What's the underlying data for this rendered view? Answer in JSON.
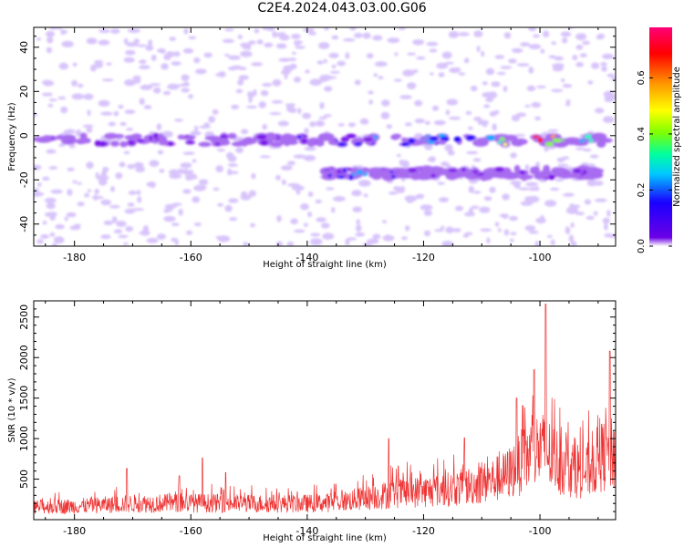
{
  "figure_title": "C2E4.2024.043.03.00.G06",
  "colors": {
    "snr_line": "#ee3333",
    "colormap": [
      "#ffffff",
      "#d8c4fb",
      "#a86cf0",
      "#7a10ea",
      "#1a00ff",
      "#00a8ff",
      "#00ffbf",
      "#7fff00",
      "#ffff00",
      "#ff9900",
      "#ff0000",
      "#ff0077"
    ]
  },
  "chart_data": [
    {
      "type": "heatmap",
      "xlabel": "Height of straight line (km)",
      "ylabel": "Frequency (Hz)",
      "xlim": [
        -187,
        -87
      ],
      "ylim": [
        -50,
        49
      ],
      "xticks": [
        -180,
        -160,
        -140,
        -120,
        -100
      ],
      "yticks": [
        -40,
        -20,
        0,
        20,
        40
      ],
      "colorbar": {
        "label": "Normalized spectral amplitude",
        "range": [
          0.0,
          0.78
        ],
        "ticks": [
          0.0,
          0.2,
          0.4,
          0.6
        ]
      },
      "ridges": [
        {
          "freq": -2,
          "x_range": [
            -187,
            -88
          ],
          "peak": 0.78,
          "peak_at": -101
        },
        {
          "freq": -17,
          "x_range": [
            -137,
            -90
          ],
          "peak": 0.36,
          "peak_at": -131
        }
      ]
    },
    {
      "type": "line",
      "xlabel": "Height of straight line (km)",
      "ylabel": "SNR (10 * v/v)",
      "xlim": [
        -187,
        -87
      ],
      "ylim": [
        0,
        2700
      ],
      "xticks": [
        -180,
        -160,
        -140,
        -120,
        -100
      ],
      "yticks": [
        500,
        1000,
        1500,
        2000,
        2500
      ],
      "envelope": {
        "x": [
          -187,
          -180,
          -170,
          -160,
          -150,
          -140,
          -135,
          -130,
          -125,
          -120,
          -115,
          -110,
          -106,
          -104,
          -102,
          -100,
          -98,
          -96,
          -94,
          -92,
          -90,
          -88,
          -87
        ],
        "y": [
          190,
          200,
          240,
          250,
          240,
          240,
          260,
          320,
          390,
          420,
          460,
          540,
          650,
          790,
          950,
          1060,
          940,
          820,
          760,
          720,
          900,
          1020,
          950
        ]
      },
      "spikes": [
        {
          "x": -171,
          "y": 630
        },
        {
          "x": -162,
          "y": 540
        },
        {
          "x": -158,
          "y": 760
        },
        {
          "x": -154,
          "y": 580
        },
        {
          "x": -126,
          "y": 1000
        },
        {
          "x": -113,
          "y": 1010
        },
        {
          "x": -104,
          "y": 1500
        },
        {
          "x": -101,
          "y": 1850
        },
        {
          "x": -99,
          "y": 2660
        },
        {
          "x": -88,
          "y": 2080
        }
      ]
    }
  ]
}
